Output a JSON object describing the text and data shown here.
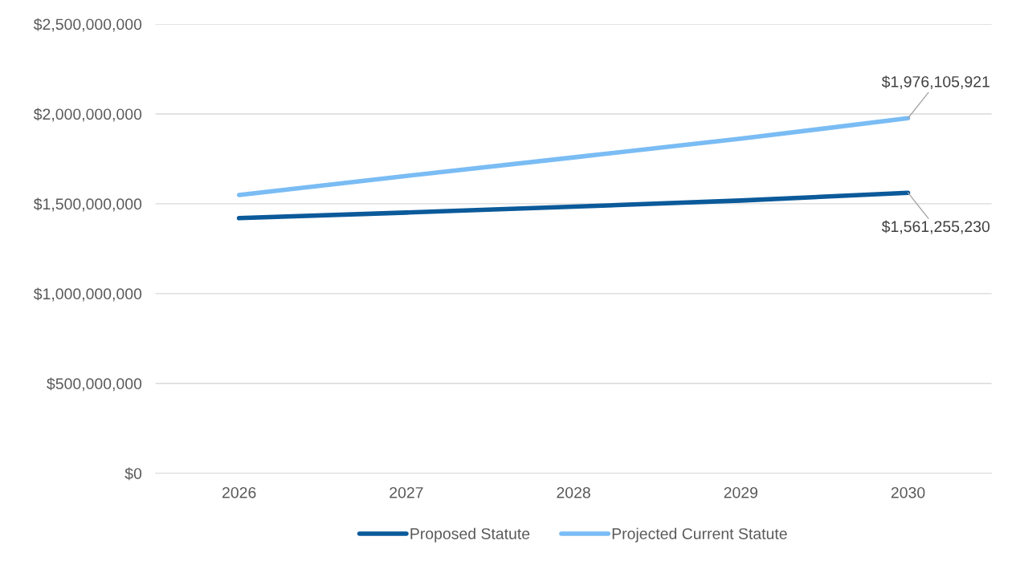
{
  "chart_data": {
    "type": "line",
    "categories": [
      "2026",
      "2027",
      "2028",
      "2029",
      "2030"
    ],
    "series": [
      {
        "name": "Proposed Statute",
        "color": "#0b5a9a",
        "values": [
          1420000000,
          1451000000,
          1484000000,
          1518000000,
          1561255230
        ],
        "value_labels": [
          null,
          null,
          null,
          null,
          "$1,561,255,230"
        ]
      },
      {
        "name": "Projected Current Statute",
        "color": "#7abcf4",
        "values": [
          1549000000,
          1655000000,
          1758000000,
          1862000000,
          1976105921
        ],
        "value_labels": [
          null,
          null,
          null,
          null,
          "$1,976,105,921"
        ]
      }
    ],
    "ylim": [
      0,
      2500000000
    ],
    "yticks": [
      {
        "value": 0,
        "label": "$0"
      },
      {
        "value": 500000000,
        "label": "$500,000,000"
      },
      {
        "value": 1000000000,
        "label": "$1,000,000,000"
      },
      {
        "value": 1500000000,
        "label": "$1,500,000,000"
      },
      {
        "value": 2000000000,
        "label": "$2,000,000,000"
      },
      {
        "value": 2500000000,
        "label": "$2,500,000,000"
      }
    ],
    "grid": "y",
    "legend": "bottom",
    "marker": "none",
    "line_style": "solid"
  }
}
